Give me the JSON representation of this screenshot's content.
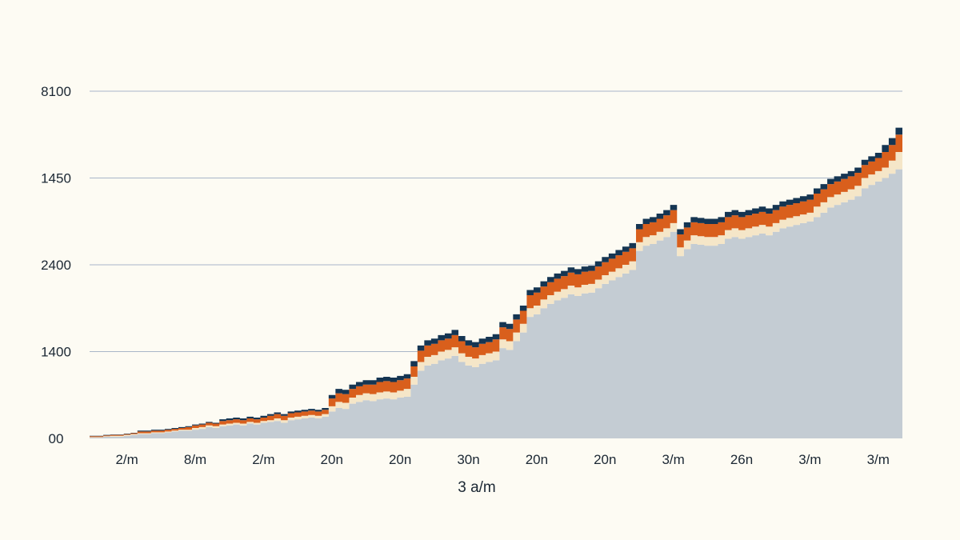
{
  "chart_data": {
    "type": "area",
    "stacked": true,
    "xlabel": "3 a/m",
    "ylabel": "",
    "grid": true,
    "y_ticks": [
      {
        "label": "00",
        "value": 0
      },
      {
        "label": "1400",
        "value": 1
      },
      {
        "label": "2400",
        "value": 2
      },
      {
        "label": "1450",
        "value": 3
      },
      {
        "label": "8100",
        "value": 4
      }
    ],
    "ylim": [
      0,
      4
    ],
    "x_ticks": [
      {
        "label": "2/m",
        "value": 3
      },
      {
        "label": "8/m",
        "value": 13
      },
      {
        "label": "2/m",
        "value": 23
      },
      {
        "label": "20n",
        "value": 33
      },
      {
        "label": "20n",
        "value": 43
      },
      {
        "label": "30n",
        "value": 53
      },
      {
        "label": "20n",
        "value": 63
      },
      {
        "label": "20n",
        "value": 73
      },
      {
        "label": "3/m",
        "value": 83
      },
      {
        "label": "26n",
        "value": 93
      },
      {
        "label": "3/m",
        "value": 103
      },
      {
        "label": "3/m",
        "value": 113
      }
    ],
    "xlim": [
      0,
      119
    ],
    "x": [
      0,
      1,
      2,
      3,
      4,
      5,
      6,
      7,
      8,
      9,
      10,
      11,
      12,
      13,
      14,
      15,
      16,
      17,
      18,
      19,
      20,
      21,
      22,
      23,
      24,
      25,
      26,
      27,
      28,
      29,
      30,
      31,
      32,
      33,
      34,
      35,
      36,
      37,
      38,
      39,
      40,
      41,
      42,
      43,
      44,
      45,
      46,
      47,
      48,
      49,
      50,
      51,
      52,
      53,
      54,
      55,
      56,
      57,
      58,
      59,
      60,
      61,
      62,
      63,
      64,
      65,
      66,
      67,
      68,
      69,
      70,
      71,
      72,
      73,
      74,
      75,
      76,
      77,
      78,
      79,
      80,
      81,
      82,
      83,
      84,
      85,
      86,
      87,
      88,
      89,
      90,
      91,
      92,
      93,
      94,
      95,
      96,
      97,
      98,
      99,
      100,
      101,
      102,
      103,
      104,
      105,
      106,
      107,
      108,
      109,
      110,
      111,
      112,
      113,
      114,
      115,
      116,
      117,
      118,
      119
    ],
    "series": [
      {
        "color": "#c4ccd3",
        "values": [
          0.01,
          0.01,
          0.02,
          0.02,
          0.02,
          0.03,
          0.04,
          0.05,
          0.05,
          0.06,
          0.06,
          0.07,
          0.08,
          0.09,
          0.09,
          0.1,
          0.11,
          0.13,
          0.12,
          0.14,
          0.15,
          0.16,
          0.15,
          0.17,
          0.16,
          0.18,
          0.19,
          0.2,
          0.18,
          0.21,
          0.22,
          0.23,
          0.24,
          0.23,
          0.25,
          0.31,
          0.35,
          0.34,
          0.4,
          0.42,
          0.44,
          0.43,
          0.45,
          0.46,
          0.45,
          0.47,
          0.48,
          0.62,
          0.78,
          0.84,
          0.86,
          0.9,
          0.92,
          0.95,
          0.88,
          0.84,
          0.82,
          0.86,
          0.88,
          0.9,
          1.04,
          1.02,
          1.12,
          1.22,
          1.4,
          1.43,
          1.5,
          1.55,
          1.59,
          1.62,
          1.66,
          1.64,
          1.67,
          1.68,
          1.73,
          1.78,
          1.82,
          1.86,
          1.9,
          1.94,
          2.16,
          2.22,
          2.24,
          2.28,
          2.32,
          2.38,
          2.1,
          2.18,
          2.24,
          2.23,
          2.22,
          2.22,
          2.24,
          2.3,
          2.32,
          2.3,
          2.32,
          2.34,
          2.36,
          2.34,
          2.38,
          2.42,
          2.44,
          2.46,
          2.48,
          2.5,
          2.55,
          2.6,
          2.66,
          2.69,
          2.72,
          2.75,
          2.79,
          2.88,
          2.92,
          2.96,
          3.0,
          3.05,
          3.1,
          3.25
        ]
      },
      {
        "color": "#f5e6c8",
        "values": [
          0.005,
          0.005,
          0.005,
          0.01,
          0.01,
          0.01,
          0.01,
          0.01,
          0.01,
          0.01,
          0.01,
          0.01,
          0.01,
          0.01,
          0.01,
          0.02,
          0.02,
          0.02,
          0.02,
          0.02,
          0.02,
          0.02,
          0.02,
          0.02,
          0.02,
          0.02,
          0.02,
          0.03,
          0.03,
          0.03,
          0.03,
          0.03,
          0.03,
          0.03,
          0.03,
          0.06,
          0.07,
          0.07,
          0.07,
          0.08,
          0.08,
          0.08,
          0.08,
          0.08,
          0.08,
          0.08,
          0.09,
          0.09,
          0.1,
          0.1,
          0.1,
          0.1,
          0.1,
          0.1,
          0.1,
          0.1,
          0.1,
          0.1,
          0.1,
          0.1,
          0.1,
          0.1,
          0.1,
          0.1,
          0.1,
          0.1,
          0.1,
          0.1,
          0.1,
          0.1,
          0.1,
          0.1,
          0.1,
          0.1,
          0.1,
          0.1,
          0.1,
          0.1,
          0.1,
          0.1,
          0.1,
          0.1,
          0.1,
          0.1,
          0.1,
          0.1,
          0.1,
          0.1,
          0.1,
          0.1,
          0.1,
          0.1,
          0.1,
          0.1,
          0.1,
          0.1,
          0.1,
          0.1,
          0.1,
          0.1,
          0.1,
          0.1,
          0.1,
          0.1,
          0.1,
          0.1,
          0.12,
          0.12,
          0.12,
          0.12,
          0.12,
          0.12,
          0.12,
          0.12,
          0.12,
          0.12,
          0.12,
          0.15,
          0.2,
          0.22
        ]
      },
      {
        "color": "#d95f1c",
        "values": [
          0.01,
          0.01,
          0.01,
          0.01,
          0.01,
          0.01,
          0.01,
          0.02,
          0.02,
          0.02,
          0.02,
          0.02,
          0.02,
          0.02,
          0.03,
          0.03,
          0.03,
          0.03,
          0.03,
          0.04,
          0.04,
          0.04,
          0.04,
          0.04,
          0.04,
          0.04,
          0.05,
          0.05,
          0.05,
          0.05,
          0.05,
          0.05,
          0.05,
          0.05,
          0.05,
          0.09,
          0.1,
          0.1,
          0.1,
          0.1,
          0.1,
          0.11,
          0.12,
          0.12,
          0.12,
          0.12,
          0.12,
          0.12,
          0.13,
          0.13,
          0.13,
          0.13,
          0.13,
          0.14,
          0.14,
          0.13,
          0.13,
          0.13,
          0.13,
          0.14,
          0.14,
          0.14,
          0.15,
          0.15,
          0.15,
          0.15,
          0.15,
          0.15,
          0.15,
          0.15,
          0.15,
          0.15,
          0.15,
          0.15,
          0.15,
          0.15,
          0.15,
          0.15,
          0.15,
          0.15,
          0.15,
          0.15,
          0.15,
          0.15,
          0.15,
          0.15,
          0.15,
          0.15,
          0.15,
          0.15,
          0.15,
          0.15,
          0.15,
          0.15,
          0.15,
          0.15,
          0.15,
          0.15,
          0.15,
          0.15,
          0.15,
          0.15,
          0.15,
          0.15,
          0.15,
          0.15,
          0.15,
          0.15,
          0.15,
          0.15,
          0.15,
          0.15,
          0.15,
          0.15,
          0.15,
          0.15,
          0.18,
          0.18,
          0.2,
          0.2
        ]
      },
      {
        "color": "#153552",
        "values": [
          0.005,
          0.005,
          0.005,
          0.005,
          0.005,
          0.005,
          0.005,
          0.01,
          0.01,
          0.01,
          0.01,
          0.01,
          0.01,
          0.01,
          0.01,
          0.01,
          0.01,
          0.01,
          0.01,
          0.02,
          0.02,
          0.02,
          0.02,
          0.02,
          0.02,
          0.02,
          0.02,
          0.02,
          0.02,
          0.02,
          0.02,
          0.02,
          0.02,
          0.02,
          0.02,
          0.04,
          0.05,
          0.05,
          0.05,
          0.05,
          0.05,
          0.05,
          0.05,
          0.05,
          0.05,
          0.05,
          0.05,
          0.06,
          0.06,
          0.06,
          0.06,
          0.06,
          0.06,
          0.06,
          0.06,
          0.06,
          0.06,
          0.06,
          0.06,
          0.06,
          0.06,
          0.06,
          0.06,
          0.06,
          0.06,
          0.06,
          0.06,
          0.06,
          0.06,
          0.06,
          0.06,
          0.06,
          0.06,
          0.06,
          0.06,
          0.06,
          0.06,
          0.06,
          0.06,
          0.06,
          0.06,
          0.06,
          0.06,
          0.06,
          0.06,
          0.06,
          0.06,
          0.06,
          0.06,
          0.06,
          0.06,
          0.06,
          0.06,
          0.06,
          0.06,
          0.06,
          0.06,
          0.06,
          0.06,
          0.06,
          0.06,
          0.06,
          0.06,
          0.06,
          0.06,
          0.06,
          0.06,
          0.06,
          0.06,
          0.06,
          0.06,
          0.06,
          0.06,
          0.06,
          0.06,
          0.06,
          0.08,
          0.08,
          0.08,
          0.1
        ]
      }
    ]
  }
}
